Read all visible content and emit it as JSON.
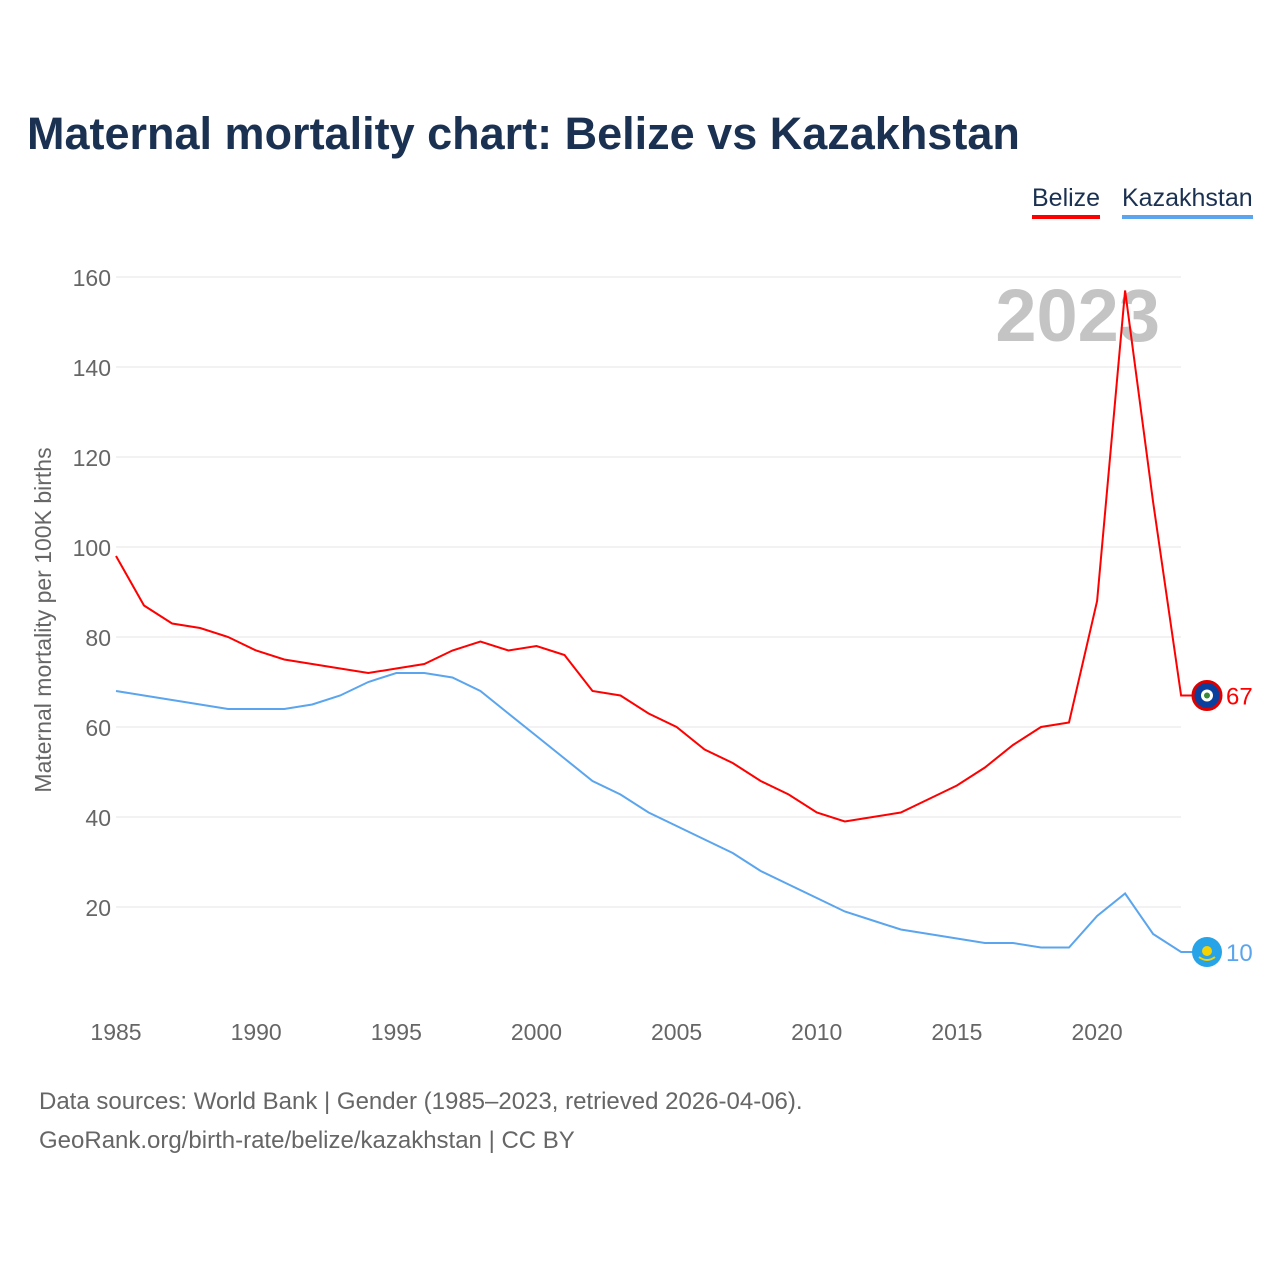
{
  "chart_data": {
    "type": "line",
    "title": "Maternal mortality chart: Belize vs Kazakhstan",
    "ylabel": "Maternal mortality per 100K births",
    "xlabel": "",
    "ylim": [
      0,
      165
    ],
    "xlim": [
      1985,
      2023
    ],
    "yticks": [
      20,
      40,
      60,
      80,
      100,
      120,
      140,
      160
    ],
    "xticks": [
      1985,
      1990,
      1995,
      2000,
      2005,
      2010,
      2015,
      2020
    ],
    "grid": true,
    "legend_placement": "top-right",
    "year_watermark": "2023",
    "x": [
      1985,
      1986,
      1987,
      1988,
      1989,
      1990,
      1991,
      1992,
      1993,
      1994,
      1995,
      1996,
      1997,
      1998,
      1999,
      2000,
      2001,
      2002,
      2003,
      2004,
      2005,
      2006,
      2007,
      2008,
      2009,
      2010,
      2011,
      2012,
      2013,
      2014,
      2015,
      2016,
      2017,
      2018,
      2019,
      2020,
      2021,
      2022,
      2023
    ],
    "series": [
      {
        "name": "Belize",
        "color": "#ff0000",
        "end_label": "67",
        "values": [
          98,
          87,
          83,
          82,
          80,
          77,
          75,
          74,
          73,
          72,
          73,
          74,
          77,
          79,
          77,
          78,
          76,
          68,
          67,
          63,
          60,
          55,
          52,
          48,
          45,
          41,
          39,
          40,
          41,
          44,
          47,
          51,
          56,
          60,
          61,
          88,
          157,
          110,
          67
        ]
      },
      {
        "name": "Kazakhstan",
        "color": "#5aa5ee",
        "end_label": "10",
        "values": [
          68,
          67,
          66,
          65,
          64,
          64,
          64,
          65,
          67,
          70,
          72,
          72,
          71,
          68,
          63,
          58,
          53,
          48,
          45,
          41,
          38,
          35,
          32,
          28,
          25,
          22,
          19,
          17,
          15,
          14,
          13,
          12,
          12,
          11,
          11,
          18,
          23,
          14,
          10
        ]
      }
    ]
  },
  "footer": {
    "line1": "Data sources: World Bank | Gender (1985–2023, retrieved 2026-04-06).",
    "line2": "GeoRank.org/birth-rate/belize/kazakhstan | CC BY"
  }
}
